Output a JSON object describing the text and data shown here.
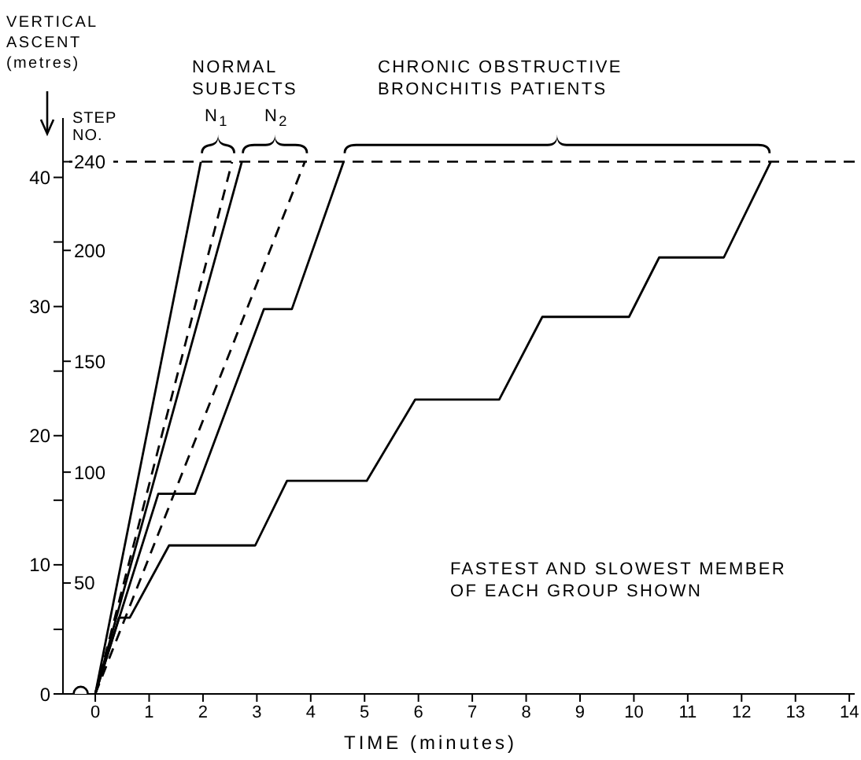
{
  "chart_data": {
    "type": "line",
    "ylabel": "VERTICAL ASCENT (metres)",
    "y2label": "STEP NO.",
    "xlabel": "TIME (minutes)",
    "annotations": [
      "NORMAL SUBJECTS",
      "N$_{1}$",
      "N$_{2}$",
      "CHRONIC OBSTRUCTIVE BRONCHITIS PATIENTS",
      "FASTEST AND SLOWEST MEMBER OF EACH GROUP SHOWN"
    ],
    "xlim": [
      -0.6,
      14.1
    ],
    "xticks": [
      0,
      1,
      2,
      3,
      4,
      5,
      6,
      7,
      8,
      9,
      10,
      11,
      12,
      13,
      14
    ],
    "ylim": [
      0,
      44.6
    ],
    "yticks": [
      0,
      {
        "value": 5,
        "label": null
      },
      10,
      {
        "value": 15,
        "label": null
      },
      20,
      {
        "value": 25,
        "label": null
      },
      30,
      {
        "value": 35,
        "label": null
      },
      40
    ],
    "y2lim": [
      0,
      259.7
    ],
    "y2ticks": [
      50,
      100,
      150,
      200,
      240
    ],
    "ref_lines": [
      {
        "axis": "y2",
        "value": 240,
        "line_style": "dashed",
        "color": "#000000"
      }
    ],
    "marker": "none",
    "series": [
      {
        "color": "#000000",
        "line_style": "solid",
        "x": [
          0,
          1.96
        ],
        "values": [
          0,
          41.2
        ]
      },
      {
        "color": "#000000",
        "line_style": "dashed",
        "x": [
          0,
          2.54
        ],
        "values": [
          0,
          41.2
        ]
      },
      {
        "color": "#000000",
        "line_style": "solid",
        "x": [
          0,
          2.72
        ],
        "values": [
          0,
          41.2
        ]
      },
      {
        "color": "#000000",
        "line_style": "dashed",
        "x": [
          0,
          3.89
        ],
        "values": [
          0,
          41.2
        ]
      },
      {
        "color": "#000000",
        "line_style": "solid",
        "x": [
          0,
          1.17,
          1.85,
          3.13,
          3.65,
          4.61
        ],
        "values": [
          0,
          15.5,
          15.5,
          29.8,
          29.8,
          41.2
        ]
      },
      {
        "color": "#000000",
        "line_style": "solid",
        "x": [
          0,
          0.44,
          0.64,
          1.37,
          2.97,
          3.56,
          5.04,
          5.94,
          7.5,
          8.3,
          9.91,
          10.47,
          11.67,
          12.54
        ],
        "values": [
          0,
          5.9,
          5.9,
          11.5,
          11.5,
          16.5,
          16.5,
          22.8,
          22.8,
          29.2,
          29.2,
          33.8,
          33.8,
          41.2
        ]
      },
      {
        "type": "scatter",
        "color": "#000000",
        "marker": "circle",
        "x": [
          -0.27
        ],
        "values": [
          0
        ]
      }
    ]
  }
}
